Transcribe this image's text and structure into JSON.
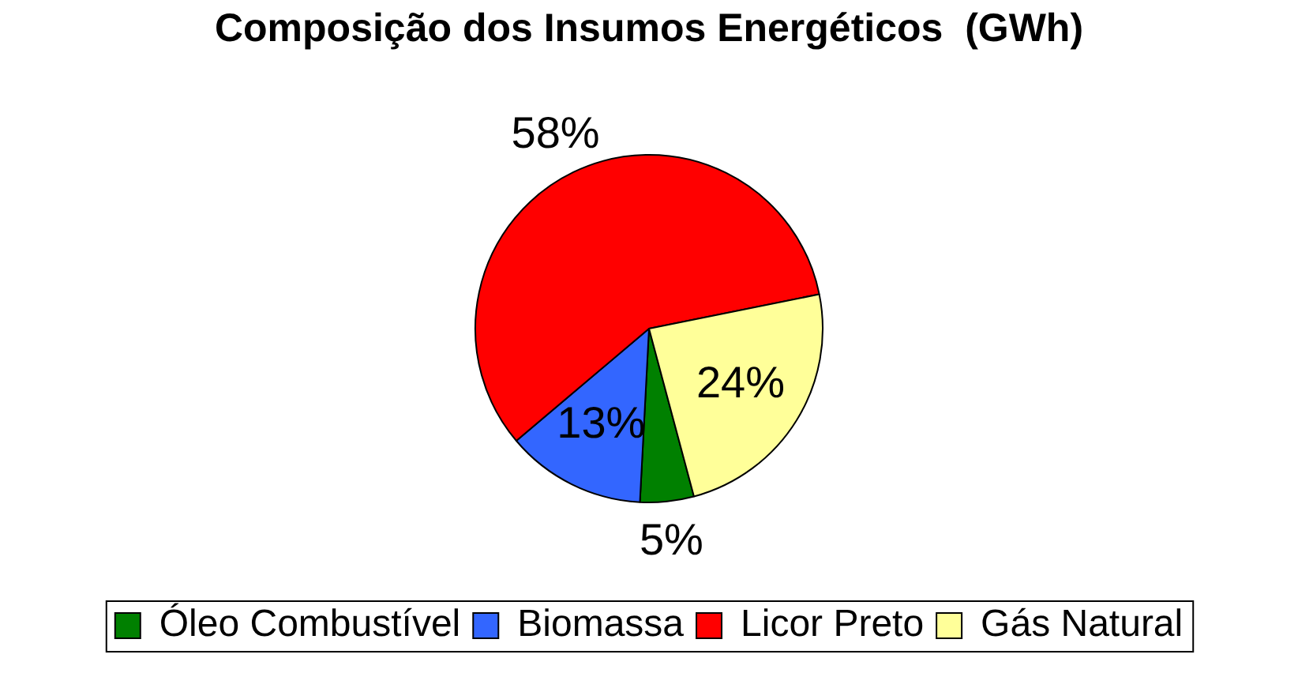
{
  "chart_data": {
    "type": "pie",
    "title": "Composição dos Insumos Energéticos  (GWh)",
    "categories": [
      "Óleo Combustível",
      "Biomassa",
      "Licor Preto",
      "Gás Natural"
    ],
    "values": [
      5,
      13,
      58,
      24
    ],
    "colors": [
      "#008000",
      "#3366ff",
      "#ff0000",
      "#ffff99"
    ],
    "value_labels": [
      "5%",
      "13%",
      "58%",
      "24%"
    ],
    "legend": "bottom"
  }
}
